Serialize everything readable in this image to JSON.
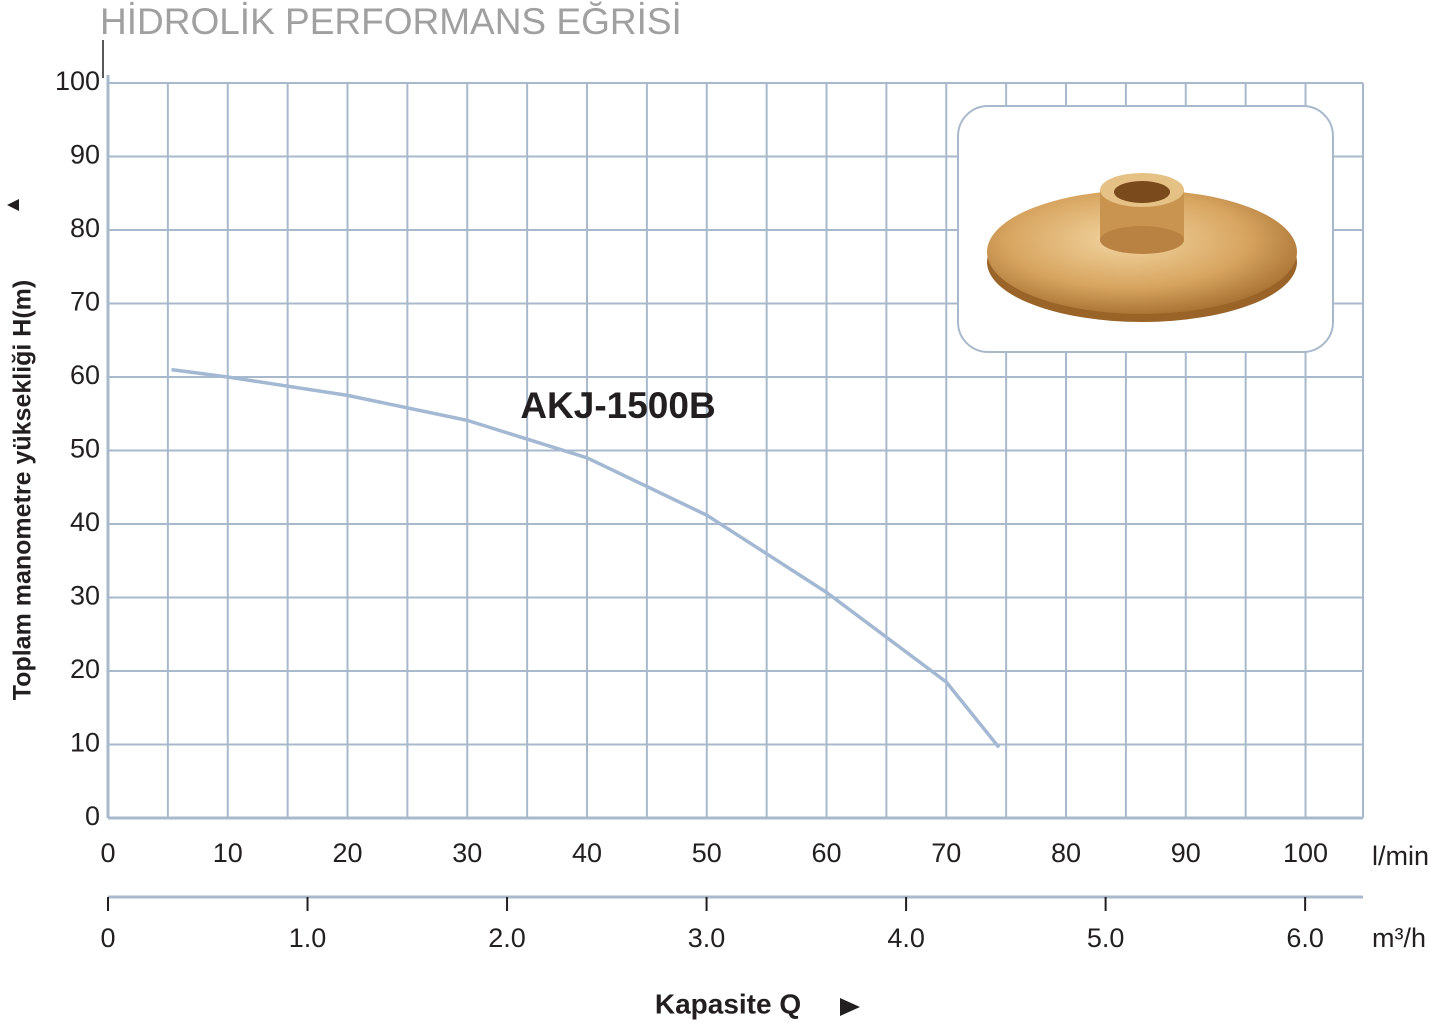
{
  "chart_data": {
    "type": "line",
    "title": "HİDROLİK PERFORMANS EĞRİSİ",
    "y_label": "Toplam manometre yüksekliği H(m)",
    "x_label": "Kapasite Q",
    "x_unit": "l/min",
    "x2_unit": "m³/h",
    "x": [
      5.3,
      10,
      20,
      30,
      40,
      50,
      60,
      70,
      74.4
    ],
    "series": [
      {
        "name": "AKJ-1500B",
        "color": "#a3b8d2",
        "values": [
          61,
          60,
          57.5,
          54.1,
          49,
          41.2,
          30.7,
          18.5,
          9.6
        ]
      }
    ],
    "xlim": [
      0,
      104.8
    ],
    "xticks": [
      0,
      10,
      20,
      30,
      40,
      50,
      60,
      70,
      80,
      90,
      100
    ],
    "x_minor_grid": [
      5,
      15,
      25,
      35,
      45,
      55,
      65,
      75,
      85,
      95
    ],
    "x2lim": [
      0,
      6.29
    ],
    "x2ticks": [
      0,
      {
        "value": 1,
        "label": "1.0"
      },
      {
        "value": 2,
        "label": "2.0"
      },
      {
        "value": 3,
        "label": "3.0"
      },
      {
        "value": 4,
        "label": "4.0"
      },
      {
        "value": 5,
        "label": "5.0"
      },
      {
        "value": 6,
        "label": "6.0"
      }
    ],
    "ylim": [
      0,
      100
    ],
    "yticks": [
      0,
      10,
      20,
      30,
      40,
      50,
      60,
      70,
      80,
      90,
      100
    ],
    "grid": true
  }
}
